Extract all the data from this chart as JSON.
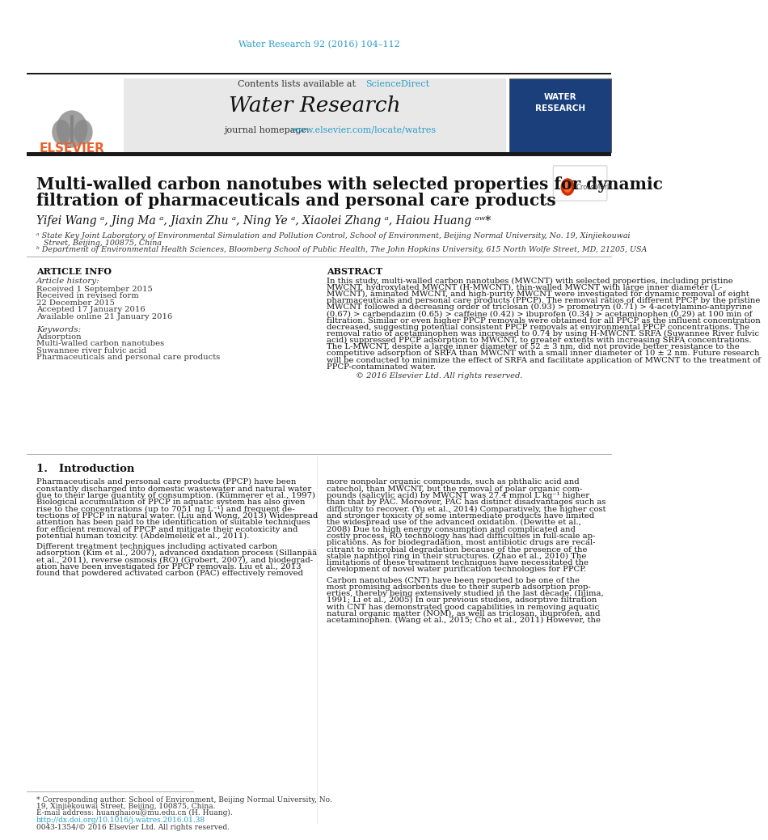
{
  "journal_ref": "Water Research 92 (2016) 104–112",
  "journal_ref_color": "#2a9dc8",
  "contents_line": "Contents lists available at",
  "sciencedirect": "ScienceDirect",
  "sciencedirect_color": "#2a9dc8",
  "journal_name": "Water Research",
  "journal_homepage_text": "journal homepage:",
  "journal_url": "www.elsevier.com/locate/watres",
  "journal_url_color": "#2a9dc8",
  "elsevier_color": "#e8612c",
  "title_line1": "Multi-walled carbon nanotubes with selected properties for dynamic",
  "title_line2": "filtration of pharmaceuticals and personal care products",
  "authors": "Yifei Wang ᵃ, Jing Ma ᵃ, Jiaxin Zhu ᵃ, Ning Ye ᵃ, Xiaolei Zhang ᵃ, Haiou Huang ᵃʷ*",
  "affil_a": "ᵃ State Key Joint Laboratory of Environmental Simulation and Pollution Control, School of Environment, Beijing Normal University, No. 19, Xinjiekouwai",
  "affil_a2": "   Street, Beijing, 100875, China",
  "affil_b": "ᵇ Department of Environmental Health Sciences, Bloomberg School of Public Health, The John Hopkins University, 615 North Wolfe Street, MD, 21205, USA",
  "article_info_title": "ARTICLE INFO",
  "article_history_title": "Article history:",
  "received1": "Received 1 September 2015",
  "received_revised1": "Received in revised form",
  "received_revised2": "22 December 2015",
  "accepted": "Accepted 17 January 2016",
  "available": "Available online 21 January 2016",
  "keywords_title": "Keywords:",
  "keyword1": "Adsorption",
  "keyword2": "Multi-walled carbon nanotubes",
  "keyword3": "Suwannee river fulvic acid",
  "keyword4": "Pharmaceuticals and personal care products",
  "abstract_title": "ABSTRACT",
  "abstract_lines": [
    "In this study, multi-walled carbon nanotubes (MWCNT) with selected properties, including pristine",
    "MWCNT, hydroxylated MWCNT (H-MWCNT), thin-walled MWCNT with large inner diameter (L-",
    "MWCNT), aminated MWCNT, and high-purity MWCNT were investigated for dynamic removal of eight",
    "pharmaceuticals and personal care products (PPCP). The removal ratios of different PPCP by the pristine",
    "MWCNT followed a decreasing order of triclosan (0.93) > prometryn (0.71) > 4-acetylamino-antipyrine",
    "(0.67) > carbendazim (0.65) > caffeine (0.42) > ibuprofen (0.34) > acetaminophen (0.29) at 100 min of",
    "filtration. Similar or even higher PPCP removals were obtained for all PPCP as the influent concentration",
    "decreased, suggesting potential consistent PPCP removals at environmental PPCP concentrations. The",
    "removal ratio of acetaminophen was increased to 0.74 by using H-MWCNT. SRFA (Suwannee River fulvic",
    "acid) suppressed PPCP adsorption to MWCNT, to greater extents with increasing SRFA concentrations.",
    "The L-MWCNT, despite a large inner diameter of 52 ± 3 nm, did not provide better resistance to the",
    "competitive adsorption of SRFA than MWCNT with a small inner diameter of 10 ± 2 nm. Future research",
    "will be conducted to minimize the effect of SRFA and facilitate application of MWCNT to the treatment of",
    "PPCP-contaminated water."
  ],
  "copyright": "© 2016 Elsevier Ltd. All rights reserved.",
  "section1_title": "1.   Introduction",
  "intro_left_lines": [
    "Pharmaceuticals and personal care products (PPCP) have been",
    "constantly discharged into domestic wastewater and natural water",
    "due to their large quantity of consumption. (Kümmerer et al., 1997)",
    "Biological accumulation of PPCP in aquatic system has also given",
    "rise to the concentrations (up to 7051 ng L⁻¹) and frequent de-",
    "tections of PPCP in natural water. (Liu and Wong, 2013) Widespread",
    "attention has been paid to the identification of suitable techniques",
    "for efficient removal of PPCP and mitigate their ecotoxicity and",
    "potential human toxicity. (Abdelmeleik et al., 2011).",
    "",
    "Different treatment techniques including activated carbon",
    "adsorption (Kim et al., 2007), advanced oxidation process (Sillanpää",
    "et al., 2011), reverse osmosis (RO) (Grobert, 2007), and biodegrad-",
    "ation have been investigated for PPCP removals. Liu et al., 2013",
    "found that powdered activated carbon (PAC) effectively removed"
  ],
  "intro_right_lines": [
    "more nonpolar organic compounds, such as phthalic acid and",
    "catechol, than MWCNT, but the removal of polar organic com-",
    "pounds (salicylic acid) by MWCNT was 27.4 mmol L kg⁻¹ higher",
    "than that by PAC. Moreover, PAC has distinct disadvantages such as",
    "difficulty to recover. (Yu et al., 2014) Comparatively, the higher cost",
    "and stronger toxicity of some intermediate products have limited",
    "the widespread use of the advanced oxidation. (Dewitte et al.,",
    "2008) Due to high energy consumption and complicated and",
    "costly process, RO technology has had difficulties in full-scale ap-",
    "plications. As for biodegradation, most antibiotic drugs are recal-",
    "citrant to microbial degradation because of the presence of the",
    "stable naphthol ring in their structures. (Zhao et al., 2010) The",
    "limitations of these treatment techniques have necessitated the",
    "development of novel water purification technologies for PPCP.",
    "",
    "Carbon nanotubes (CNT) have been reported to be one of the",
    "most promising adsorbents due to their superb adsorption prop-",
    "erties, thereby being extensively studied in the last decade. (Iijima,",
    "1991; Li et al., 2005) In our previous studies, adsorptive filtration",
    "with CNT has demonstrated good capabilities in removing aquatic",
    "natural organic matter (NOM), as well as triclosan, ibuprofen, and",
    "acetaminophen. (Wang et al., 2015; Cho et al., 2011) However, the"
  ],
  "footnote_line1": "* Corresponding author. School of Environment, Beijing Normal University, No.",
  "footnote_line2": "19, Xinjiekouwai Street, Beijing, 100875, China.",
  "footnote_line3": "E-mail address: huanghaiou@mu.edu.cn (H. Huang).",
  "doi_line": "http://dx.doi.org/10.1016/j.watres.2016.01.38",
  "issn_line": "0043-1354/© 2016 Elsevier Ltd. All rights reserved.",
  "bg_color": "#ffffff",
  "header_bg": "#e8e8e8",
  "text_color": "#000000",
  "dark_bar_color": "#1a1a1a"
}
